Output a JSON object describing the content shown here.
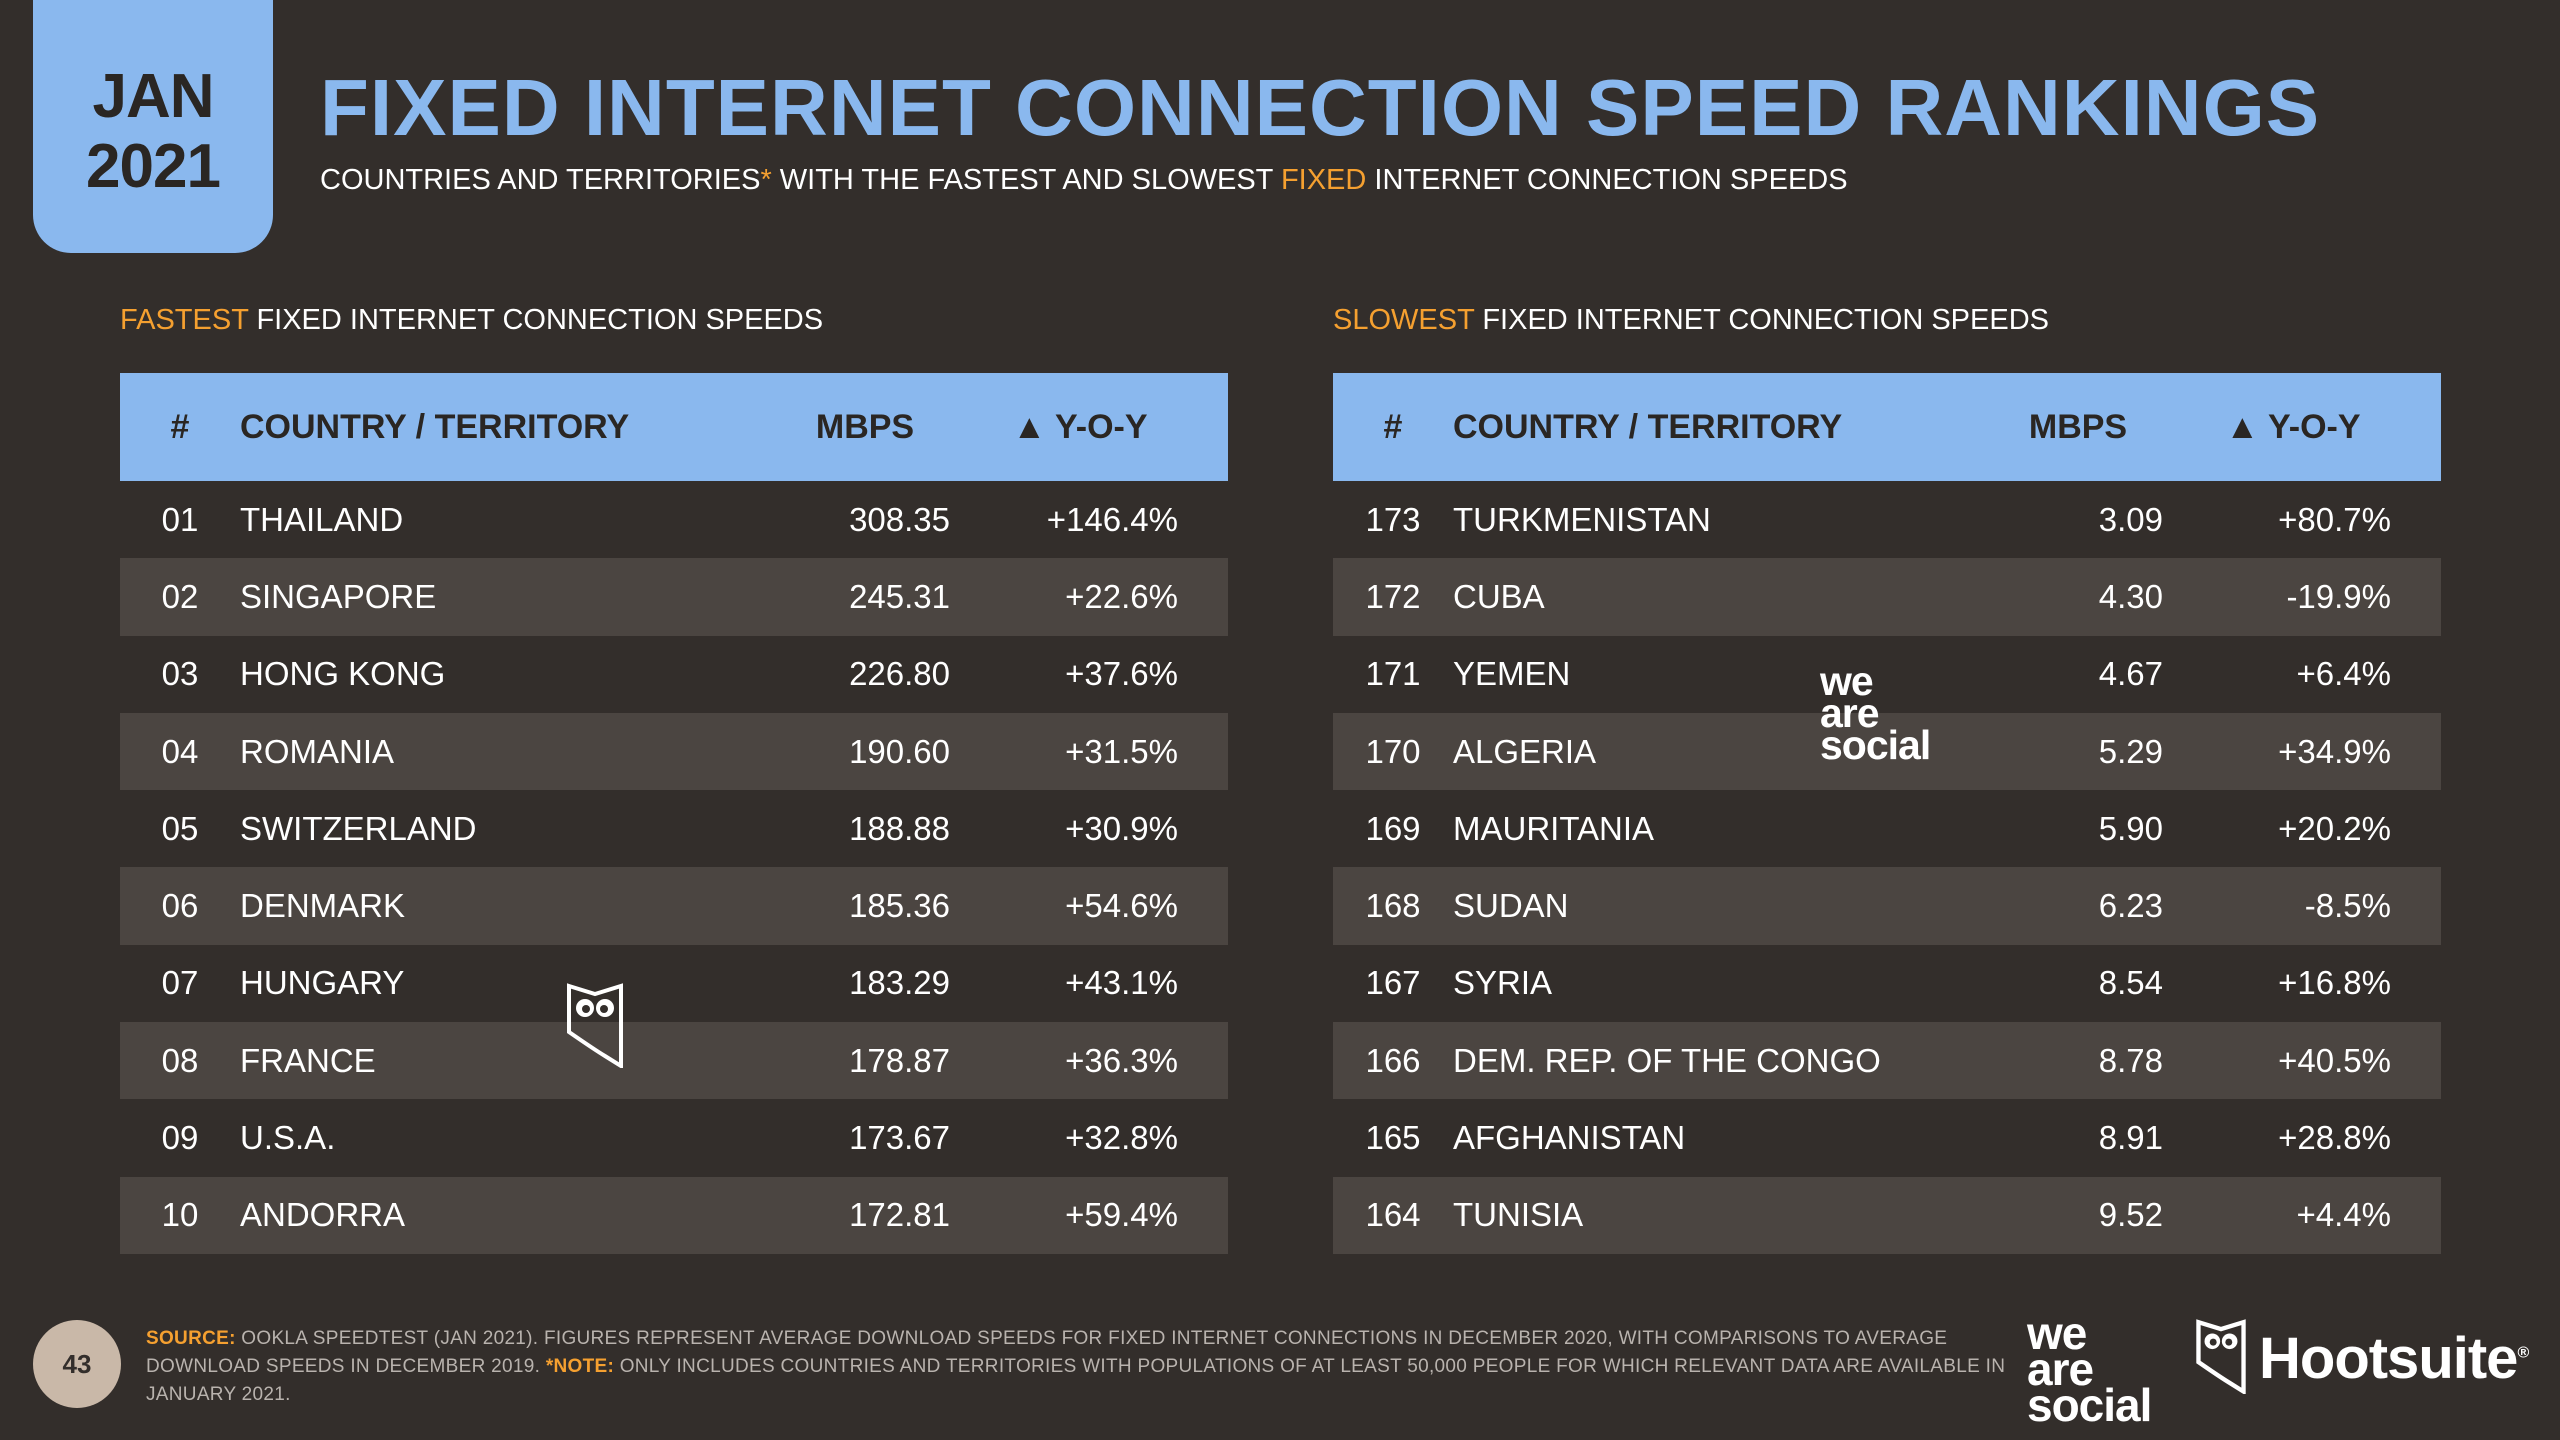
{
  "header": {
    "month": "JAN",
    "year": "2021",
    "title": "FIXED INTERNET CONNECTION SPEED RANKINGS",
    "subtitle_part1": "COUNTRIES AND TERRITORIES",
    "subtitle_asterisk": "*",
    "subtitle_part2": " WITH THE FASTEST AND SLOWEST ",
    "subtitle_highlight": "FIXED",
    "subtitle_part3": " INTERNET CONNECTION SPEEDS"
  },
  "fastest": {
    "label_highlight": "FASTEST",
    "label_rest": " FIXED INTERNET CONNECTION SPEEDS",
    "columns": [
      "#",
      "COUNTRY / TERRITORY",
      "MBPS",
      "▲ Y-O-Y"
    ],
    "rows": [
      [
        "01",
        "THAILAND",
        "308.35",
        "+146.4%"
      ],
      [
        "02",
        "SINGAPORE",
        "245.31",
        "+22.6%"
      ],
      [
        "03",
        "HONG KONG",
        "226.80",
        "+37.6%"
      ],
      [
        "04",
        "ROMANIA",
        "190.60",
        "+31.5%"
      ],
      [
        "05",
        "SWITZERLAND",
        "188.88",
        "+30.9%"
      ],
      [
        "06",
        "DENMARK",
        "185.36",
        "+54.6%"
      ],
      [
        "07",
        "HUNGARY",
        "183.29",
        "+43.1%"
      ],
      [
        "08",
        "FRANCE",
        "178.87",
        "+36.3%"
      ],
      [
        "09",
        "U.S.A.",
        "173.67",
        "+32.8%"
      ],
      [
        "10",
        "ANDORRA",
        "172.81",
        "+59.4%"
      ]
    ]
  },
  "slowest": {
    "label_highlight": "SLOWEST",
    "label_rest": " FIXED INTERNET CONNECTION SPEEDS",
    "columns": [
      "#",
      "COUNTRY / TERRITORY",
      "MBPS",
      "▲ Y-O-Y"
    ],
    "rows": [
      [
        "173",
        "TURKMENISTAN",
        "3.09",
        "+80.7%"
      ],
      [
        "172",
        "CUBA",
        "4.30",
        "-19.9%"
      ],
      [
        "171",
        "YEMEN",
        "4.67",
        "+6.4%"
      ],
      [
        "170",
        "ALGERIA",
        "5.29",
        "+34.9%"
      ],
      [
        "169",
        "MAURITANIA",
        "5.90",
        "+20.2%"
      ],
      [
        "168",
        "SUDAN",
        "6.23",
        "-8.5%"
      ],
      [
        "167",
        "SYRIA",
        "8.54",
        "+16.8%"
      ],
      [
        "166",
        "DEM. REP. OF THE CONGO",
        "8.78",
        "+40.5%"
      ],
      [
        "165",
        "AFGHANISTAN",
        "8.91",
        "+28.8%"
      ],
      [
        "164",
        "TUNISIA",
        "9.52",
        "+4.4%"
      ]
    ]
  },
  "footer": {
    "source_label": "SOURCE:",
    "source_text": " OOKLA SPEEDTEST (JAN 2021). FIGURES REPRESENT AVERAGE DOWNLOAD SPEEDS FOR FIXED INTERNET CONNECTIONS IN DECEMBER 2020, WITH COMPARISONS TO AVERAGE DOWNLOAD SPEEDS IN DECEMBER 2019. ",
    "note_label": "*NOTE:",
    "note_text": " ONLY INCLUDES COUNTRIES AND TERRITORIES WITH POPULATIONS OF AT LEAST 50,000 PEOPLE FOR WHICH RELEVANT DATA ARE AVAILABLE IN JANUARY 2021.",
    "page_number": "43"
  },
  "branding": {
    "ws_line1": "we",
    "ws_line2": "are",
    "ws_line3": "social",
    "hootsuite": "Hootsuite",
    "registered": "®"
  },
  "colors": {
    "background": "#332e2b",
    "accent_blue": "#8ab8ee",
    "accent_orange": "#f5a030",
    "row_alt": "#4b4541"
  }
}
